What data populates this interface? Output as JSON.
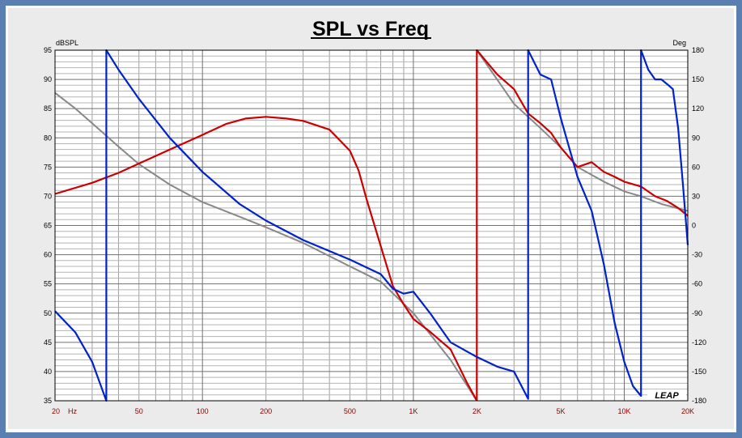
{
  "chart_data": {
    "type": "line",
    "title": "SPL vs Freq",
    "ylabel_left": "dBSPL",
    "ylabel_right": "Deg",
    "x_scale": "log",
    "xlim": [
      20,
      20000
    ],
    "ylim_left": [
      35,
      95
    ],
    "ylim_right": [
      -180,
      180
    ],
    "grid": true,
    "brand": "LEAP",
    "x_ticks": [
      {
        "value": 20,
        "label": "20"
      },
      {
        "value": 50,
        "label": "50"
      },
      {
        "value": 100,
        "label": "100"
      },
      {
        "value": 200,
        "label": "200"
      },
      {
        "value": 500,
        "label": "500"
      },
      {
        "value": 1000,
        "label": "1K"
      },
      {
        "value": 2000,
        "label": "2K"
      },
      {
        "value": 5000,
        "label": "5K"
      },
      {
        "value": 10000,
        "label": "10K"
      },
      {
        "value": 20000,
        "label": "20K"
      }
    ],
    "x_unit_label": "Hz",
    "y_left_ticks": [
      "95",
      "90",
      "85",
      "80",
      "75",
      "70",
      "65",
      "60",
      "55",
      "50",
      "45",
      "40",
      "35"
    ],
    "y_right_ticks": [
      "180",
      "150",
      "120",
      "90",
      "60",
      "30",
      "0",
      "-30",
      "-60",
      "-90",
      "-120",
      "-150",
      "-180"
    ],
    "series": [
      {
        "color": "#cc0000",
        "axis": "left",
        "x": [
          20,
          30,
          40,
          50,
          70,
          100,
          130,
          160,
          200,
          250,
          300,
          400,
          500,
          550,
          600,
          700,
          800,
          900,
          1000,
          1200,
          1500,
          1800,
          2000
        ],
        "y": [
          70.4,
          72.3,
          74.0,
          75.6,
          78.0,
          80.5,
          82.4,
          83.3,
          83.6,
          83.3,
          82.9,
          81.4,
          77.8,
          74.4,
          69.5,
          61.5,
          54.6,
          51.5,
          49.0,
          46.8,
          43.8,
          38.0,
          35.0
        ]
      },
      {
        "color": "#cc0000",
        "axis": "right",
        "x": [
          2000,
          2000,
          2500,
          3000,
          3500,
          4000,
          4500,
          5000,
          6000,
          7000,
          8000,
          9000,
          10000,
          12000,
          14000,
          16000,
          18000,
          20000
        ],
        "y": [
          -180,
          180,
          155,
          140,
          115,
          105,
          95,
          80,
          60,
          65,
          55,
          50,
          45,
          40,
          30,
          25,
          18,
          10
        ]
      },
      {
        "color": "#0022cc",
        "axis": "right",
        "x": [
          20,
          25,
          30,
          35,
          35,
          40,
          50,
          70,
          100,
          150,
          200,
          300,
          500,
          700,
          800,
          900,
          1000,
          1200,
          1500,
          2000,
          2500,
          3000,
          3500,
          3500,
          4000,
          4500,
          5000,
          6000,
          7000,
          8000,
          9000,
          10000,
          11000,
          12000,
          12000,
          13000,
          14000,
          15000,
          16000,
          17000,
          18000,
          19000,
          20000
        ],
        "y": [
          -88,
          -110,
          -140,
          -180,
          180,
          160,
          130,
          90,
          55,
          22,
          5,
          -15,
          -35,
          -50,
          -65,
          -70,
          -68,
          -90,
          -120,
          -135,
          -145,
          -150,
          -178,
          180,
          155,
          150,
          110,
          50,
          15,
          -40,
          -100,
          -140,
          -165,
          -175,
          180,
          160,
          150,
          150,
          145,
          140,
          100,
          40,
          -20
        ]
      },
      {
        "color": "#888888",
        "axis": "left",
        "x": [
          20,
          25,
          30,
          40,
          50,
          70,
          100,
          150,
          200,
          300,
          500,
          700,
          1000,
          1500,
          2000
        ],
        "y": [
          87.7,
          85.0,
          82.5,
          78.5,
          75.5,
          72.0,
          69.0,
          66.5,
          64.7,
          62.0,
          58.0,
          55.4,
          50.0,
          42.0,
          35.0
        ]
      },
      {
        "color": "#888888",
        "axis": "right",
        "x": [
          2000,
          3000,
          4000,
          5000,
          6000,
          8000,
          10000,
          12000,
          15000,
          20000
        ],
        "y": [
          180,
          125,
          100,
          80,
          60,
          45,
          35,
          30,
          22,
          15
        ]
      }
    ]
  }
}
